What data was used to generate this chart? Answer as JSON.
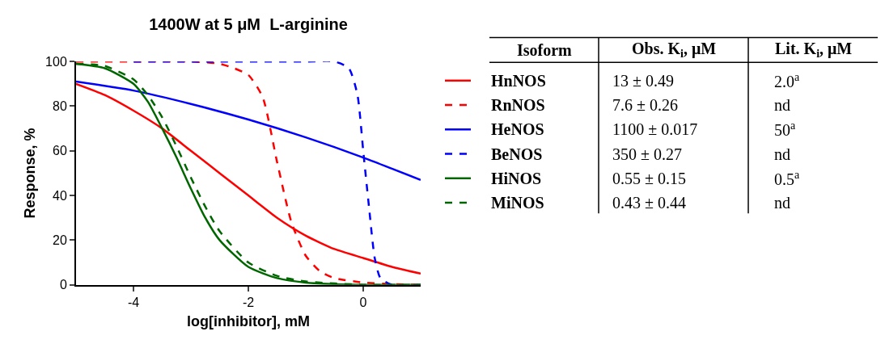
{
  "chart_data": [
    {
      "type": "line",
      "title": "1400W at 5 μM  L-arginine",
      "xlabel": "log[inhibitor], mM",
      "ylabel": "Response, %",
      "xlim": [
        -5,
        1
      ],
      "xticks": [
        -4,
        -2,
        0
      ],
      "ylim": [
        0,
        100
      ],
      "yticks": [
        0,
        20,
        40,
        60,
        80,
        100
      ],
      "legend": "right",
      "series": [
        {
          "name": "HnNOS",
          "color": "#ff0000",
          "line_style": "solid",
          "x": [
            -5,
            -4.5,
            -4,
            -3.5,
            -3,
            -2.5,
            -2,
            -1.5,
            -1,
            -0.5,
            0,
            0.5,
            1
          ],
          "values": [
            90,
            85,
            78,
            70,
            60,
            50,
            40,
            30,
            22,
            16,
            12,
            8,
            5
          ]
        },
        {
          "name": "RnNOS",
          "color": "#ff0000",
          "line_style": "dashed",
          "x": [
            -5,
            -4,
            -3,
            -2.5,
            -2.25,
            -2,
            -1.75,
            -1.5,
            -1.25,
            -1,
            -0.75,
            -0.5,
            0,
            0.5,
            1
          ],
          "values": [
            100,
            100,
            100,
            99,
            97,
            94,
            84,
            55,
            28,
            13,
            6,
            3,
            1,
            0.3,
            0
          ]
        },
        {
          "name": "HeNOS",
          "color": "#0000ff",
          "line_style": "solid",
          "x": [
            -5,
            -4,
            -3,
            -2,
            -1,
            0,
            0.5,
            1
          ],
          "values": [
            91,
            87,
            81,
            74,
            66,
            57,
            52,
            47
          ]
        },
        {
          "name": "BeNOS",
          "color": "#0000ff",
          "line_style": "dashed",
          "x": [
            -4,
            -3,
            -1,
            -0.5,
            -0.25,
            -0.1,
            0,
            0.1,
            0.2,
            0.3,
            0.5,
            1
          ],
          "values": [
            100,
            100,
            100,
            100,
            97,
            85,
            60,
            35,
            12,
            3,
            0,
            0
          ]
        },
        {
          "name": "HiNOS",
          "color": "#006600",
          "line_style": "solid",
          "x": [
            -5,
            -4.5,
            -4,
            -3.75,
            -3.5,
            -3.25,
            -3,
            -2.75,
            -2.5,
            -2,
            -1.5,
            -1,
            0,
            1
          ],
          "values": [
            99,
            97,
            90,
            82,
            70,
            57,
            43,
            30,
            20,
            8,
            3,
            1,
            0,
            0
          ]
        },
        {
          "name": "MiNOS",
          "color": "#006600",
          "line_style": "dashed",
          "x": [
            -5,
            -4.5,
            -4,
            -3.75,
            -3.5,
            -3.25,
            -3,
            -2.75,
            -2.5,
            -2,
            -1.5,
            -1,
            0,
            1
          ],
          "values": [
            99,
            98,
            92,
            85,
            75,
            62,
            48,
            35,
            24,
            10,
            4,
            1.5,
            0,
            0
          ]
        }
      ]
    },
    {
      "type": "other",
      "annotations": [
        "Isoform",
        "Obs. K$_{i}$, μM",
        "Lit. K$_{i}$, μM",
        "13 ± 0.49",
        "2.0$^{a}$",
        "7.6 ± 0.26",
        "nd",
        "1100 ± 0.017",
        "50$^{a}$",
        "350 ± 0.27",
        "nd",
        "0.55 ± 0.15",
        "0.5$^{a}$",
        "0.43 ± 0.44",
        "nd"
      ]
    }
  ]
}
